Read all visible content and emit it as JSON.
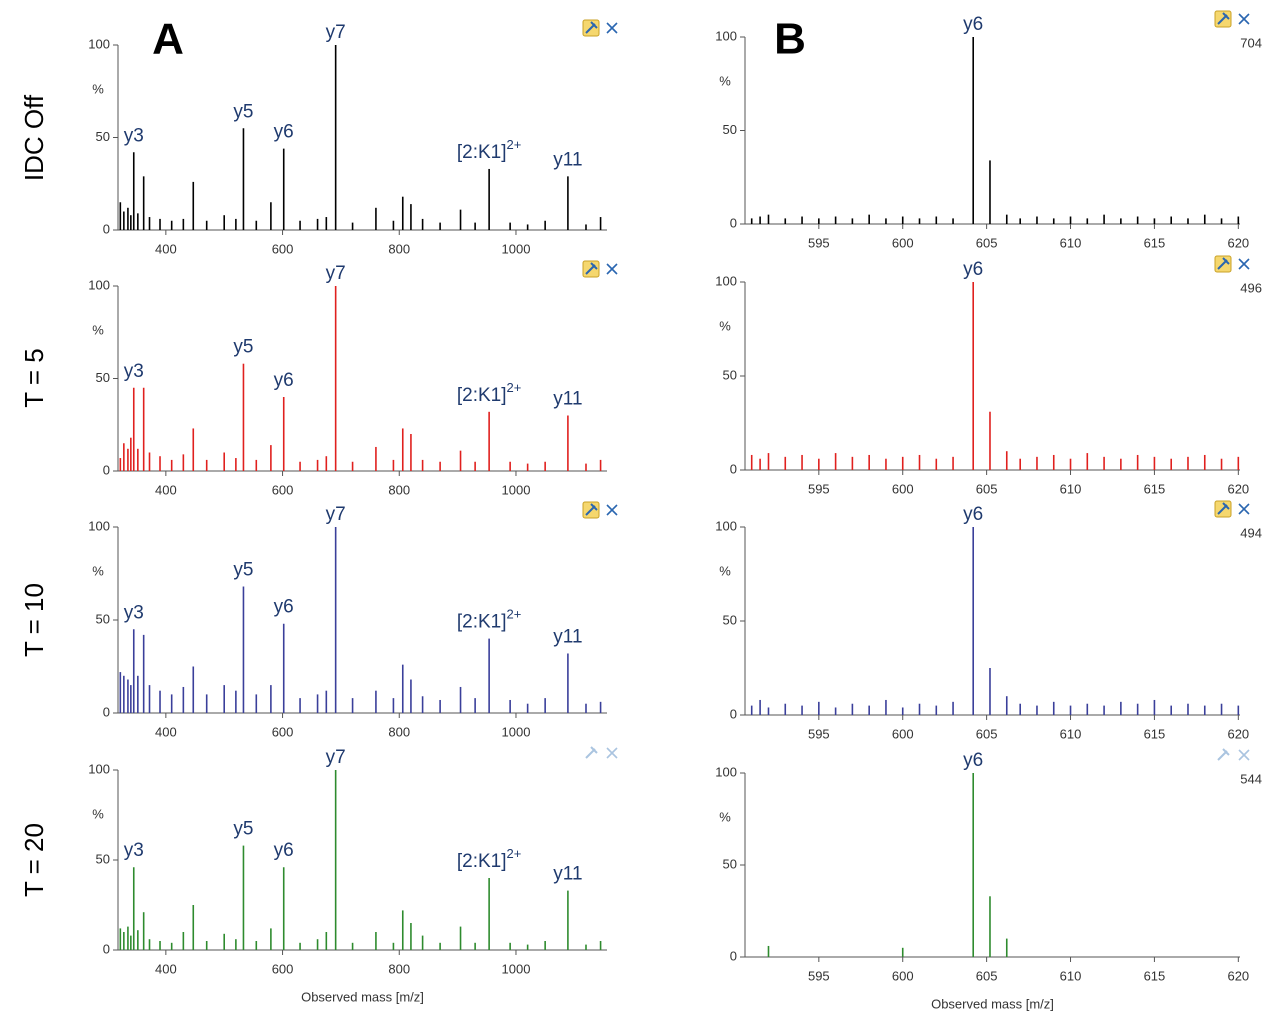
{
  "panel_labels": [
    "A",
    "B"
  ],
  "chart_data": [
    {
      "type": "stem",
      "row_label": "IDC Off",
      "color": "#000000",
      "ylabel": "%",
      "x": [
        322,
        328,
        335,
        340,
        345,
        352,
        362,
        372,
        390,
        410,
        430,
        447,
        470,
        500,
        520,
        533,
        555,
        580,
        602,
        630,
        660,
        675,
        691,
        720,
        760,
        790,
        806,
        820,
        840,
        870,
        905,
        930,
        954,
        990,
        1020,
        1050,
        1089,
        1120,
        1145
      ],
      "values": [
        15,
        10,
        12,
        8,
        42,
        9,
        29,
        7,
        6,
        5,
        6,
        26,
        5,
        8,
        6,
        55,
        5,
        15,
        44,
        5,
        6,
        7,
        100,
        4,
        12,
        5,
        18,
        14,
        6,
        4,
        11,
        4,
        33,
        4,
        3,
        5,
        29,
        3,
        7
      ],
      "xlim": [
        318,
        1156
      ],
      "ylim": [
        0,
        100
      ],
      "xticks": [
        400,
        600,
        800,
        1000
      ],
      "yticks": [
        0,
        50,
        100
      ],
      "annotations": [
        {
          "text": "y3",
          "x": 345
        },
        {
          "text": "y5",
          "x": 533
        },
        {
          "text": "y6",
          "x": 602
        },
        {
          "text": "y7",
          "x": 691
        },
        {
          "text": "[2:K1]",
          "superscript": "2+",
          "x": 954
        },
        {
          "text": "y11",
          "x": 1089
        }
      ]
    },
    {
      "type": "stem",
      "color": "#000000",
      "ylabel": "%",
      "intensity_label": 704,
      "x": [
        591,
        591.5,
        592,
        593,
        594,
        595,
        596,
        597,
        598,
        599,
        600,
        601,
        602,
        603,
        604.2,
        605.2,
        606.2,
        607,
        608,
        609,
        610,
        611,
        612,
        613,
        614,
        615,
        616,
        617,
        618,
        619,
        620
      ],
      "values": [
        3,
        4,
        5,
        3,
        4,
        3,
        4,
        3,
        5,
        3,
        4,
        3,
        4,
        3,
        100,
        34,
        5,
        3,
        4,
        3,
        4,
        3,
        5,
        3,
        4,
        3,
        4,
        3,
        5,
        3,
        4
      ],
      "xlim": [
        590.6,
        620.1
      ],
      "ylim": [
        0,
        100
      ],
      "xticks": [
        595,
        600,
        605,
        610,
        615,
        620
      ],
      "yticks": [
        0,
        50,
        100
      ],
      "annotations": [
        {
          "text": "y6",
          "x": 604.2
        }
      ]
    },
    {
      "type": "stem",
      "row_label": "T = 5",
      "color": "#e0201e",
      "ylabel": "%",
      "x": [
        322,
        328,
        335,
        340,
        345,
        352,
        362,
        372,
        390,
        410,
        430,
        447,
        470,
        500,
        520,
        533,
        555,
        580,
        602,
        630,
        660,
        675,
        691,
        720,
        760,
        790,
        806,
        820,
        840,
        870,
        905,
        930,
        954,
        990,
        1020,
        1050,
        1089,
        1120,
        1145
      ],
      "values": [
        7,
        15,
        12,
        18,
        45,
        12,
        45,
        10,
        8,
        6,
        9,
        23,
        6,
        10,
        7,
        58,
        6,
        14,
        40,
        5,
        6,
        8,
        100,
        5,
        13,
        6,
        23,
        20,
        6,
        5,
        11,
        5,
        32,
        5,
        4,
        5,
        30,
        4,
        6
      ],
      "xlim": [
        318,
        1156
      ],
      "ylim": [
        0,
        100
      ],
      "xticks": [
        400,
        600,
        800,
        1000
      ],
      "yticks": [
        0,
        50,
        100
      ],
      "annotations": [
        {
          "text": "y3",
          "x": 345
        },
        {
          "text": "y5",
          "x": 533
        },
        {
          "text": "y6",
          "x": 602
        },
        {
          "text": "y7",
          "x": 691
        },
        {
          "text": "[2:K1]",
          "superscript": "2+",
          "x": 954
        },
        {
          "text": "y11",
          "x": 1089
        }
      ]
    },
    {
      "type": "stem",
      "color": "#e0201e",
      "ylabel": "%",
      "intensity_label": 496,
      "x": [
        591,
        591.5,
        592,
        593,
        594,
        595,
        596,
        597,
        598,
        599,
        600,
        601,
        602,
        603,
        604.2,
        605.2,
        606.2,
        607,
        608,
        609,
        610,
        611,
        612,
        613,
        614,
        615,
        616,
        617,
        618,
        619,
        620
      ],
      "values": [
        8,
        6,
        9,
        7,
        8,
        6,
        9,
        7,
        8,
        6,
        7,
        8,
        6,
        7,
        100,
        31,
        10,
        6,
        7,
        8,
        6,
        9,
        7,
        6,
        8,
        7,
        6,
        7,
        8,
        6,
        7
      ],
      "xlim": [
        590.6,
        620.1
      ],
      "ylim": [
        0,
        100
      ],
      "xticks": [
        595,
        600,
        605,
        610,
        615,
        620
      ],
      "yticks": [
        0,
        50,
        100
      ],
      "annotations": [
        {
          "text": "y6",
          "x": 604.2
        }
      ]
    },
    {
      "type": "stem",
      "row_label": "T = 10",
      "color": "#3a3f9a",
      "ylabel": "%",
      "x": [
        322,
        328,
        335,
        340,
        345,
        352,
        362,
        372,
        390,
        410,
        430,
        447,
        470,
        500,
        520,
        533,
        555,
        580,
        602,
        630,
        660,
        675,
        691,
        720,
        760,
        790,
        806,
        820,
        840,
        870,
        905,
        930,
        954,
        990,
        1020,
        1050,
        1089,
        1120,
        1145
      ],
      "values": [
        22,
        20,
        18,
        15,
        45,
        20,
        42,
        15,
        12,
        10,
        14,
        25,
        10,
        15,
        12,
        68,
        10,
        15,
        48,
        8,
        10,
        12,
        100,
        8,
        12,
        8,
        26,
        18,
        9,
        7,
        14,
        8,
        40,
        7,
        5,
        8,
        32,
        5,
        6
      ],
      "xlim": [
        318,
        1156
      ],
      "ylim": [
        0,
        100
      ],
      "xticks": [
        400,
        600,
        800,
        1000
      ],
      "yticks": [
        0,
        50,
        100
      ],
      "annotations": [
        {
          "text": "y3",
          "x": 345
        },
        {
          "text": "y5",
          "x": 533
        },
        {
          "text": "y6",
          "x": 602
        },
        {
          "text": "y7",
          "x": 691
        },
        {
          "text": "[2:K1]",
          "superscript": "2+",
          "x": 954
        },
        {
          "text": "y11",
          "x": 1089
        }
      ]
    },
    {
      "type": "stem",
      "color": "#3a3f9a",
      "ylabel": "%",
      "intensity_label": 494,
      "x": [
        591,
        591.5,
        592,
        593,
        594,
        595,
        596,
        597,
        598,
        599,
        600,
        601,
        602,
        603,
        604.2,
        605.2,
        606.2,
        607,
        608,
        609,
        610,
        611,
        612,
        613,
        614,
        615,
        616,
        617,
        618,
        619,
        620
      ],
      "values": [
        5,
        8,
        4,
        6,
        5,
        7,
        4,
        6,
        5,
        8,
        4,
        6,
        5,
        7,
        100,
        25,
        10,
        6,
        5,
        7,
        5,
        6,
        5,
        7,
        6,
        8,
        5,
        6,
        5,
        6,
        5
      ],
      "xlim": [
        590.6,
        620.1
      ],
      "ylim": [
        0,
        100
      ],
      "xticks": [
        595,
        600,
        605,
        610,
        615,
        620
      ],
      "yticks": [
        0,
        50,
        100
      ],
      "annotations": [
        {
          "text": "y6",
          "x": 604.2
        }
      ]
    },
    {
      "type": "stem",
      "row_label": "T = 20",
      "color": "#2e8b2e",
      "ylabel": "%",
      "xlabel": "Observed mass [m/z]",
      "x": [
        322,
        328,
        335,
        340,
        345,
        352,
        362,
        372,
        390,
        410,
        430,
        447,
        470,
        500,
        520,
        533,
        555,
        580,
        602,
        630,
        660,
        675,
        691,
        720,
        760,
        790,
        806,
        820,
        840,
        870,
        905,
        930,
        954,
        990,
        1020,
        1050,
        1089,
        1120,
        1145
      ],
      "values": [
        12,
        10,
        13,
        8,
        46,
        11,
        21,
        6,
        5,
        4,
        10,
        25,
        5,
        9,
        6,
        58,
        5,
        12,
        46,
        4,
        6,
        10,
        100,
        4,
        10,
        4,
        22,
        15,
        8,
        4,
        13,
        4,
        40,
        4,
        3,
        5,
        33,
        3,
        5
      ],
      "xlim": [
        318,
        1156
      ],
      "ylim": [
        0,
        100
      ],
      "xticks": [
        400,
        600,
        800,
        1000
      ],
      "yticks": [
        0,
        50,
        100
      ],
      "annotations": [
        {
          "text": "y3",
          "x": 345
        },
        {
          "text": "y5",
          "x": 533
        },
        {
          "text": "y6",
          "x": 602
        },
        {
          "text": "y7",
          "x": 691
        },
        {
          "text": "[2:K1]",
          "superscript": "2+",
          "x": 954
        },
        {
          "text": "y11",
          "x": 1089
        }
      ]
    },
    {
      "type": "stem",
      "color": "#2e8b2e",
      "ylabel": "%",
      "intensity_label": 544,
      "xlabel": "Observed mass [m/z]",
      "x": [
        591,
        591.5,
        592,
        593,
        594,
        595,
        596,
        597,
        598,
        599,
        600,
        601,
        602,
        603,
        604.2,
        605.2,
        606.2,
        607,
        608,
        609,
        610,
        611,
        612,
        613,
        614,
        615,
        616,
        617,
        618,
        619,
        620
      ],
      "values": [
        0,
        0,
        6,
        0,
        0,
        0,
        0,
        0,
        0,
        0,
        5,
        0,
        0,
        0,
        100,
        33,
        10,
        0,
        0,
        0,
        0,
        0,
        0,
        0,
        0,
        0,
        0,
        0,
        0,
        0,
        0
      ],
      "xlim": [
        590.6,
        620.1
      ],
      "ylim": [
        0,
        100
      ],
      "xticks": [
        595,
        600,
        605,
        610,
        615,
        620
      ],
      "yticks": [
        0,
        50,
        100
      ],
      "annotations": [
        {
          "text": "y6",
          "x": 604.2
        }
      ]
    }
  ]
}
